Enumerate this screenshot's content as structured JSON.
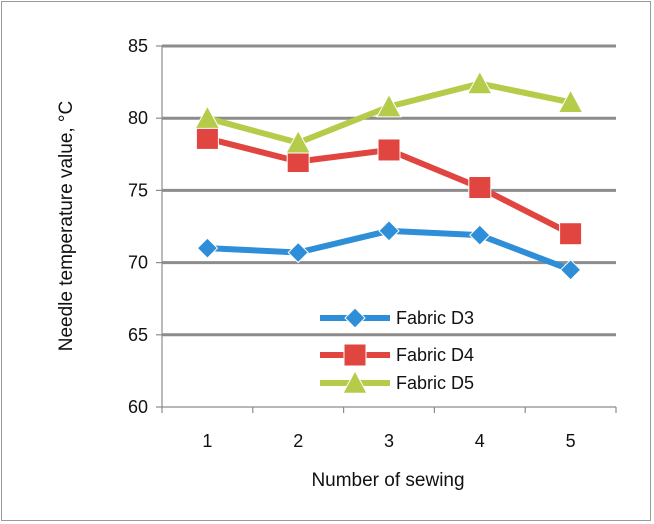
{
  "chart_data": {
    "type": "line",
    "title": "",
    "xlabel": "Number of sewing",
    "ylabel": "Needle temperature value, °C",
    "categories": [
      "1",
      "2",
      "3",
      "4",
      "5"
    ],
    "ylim": [
      60,
      85
    ],
    "yticks": [
      "60",
      "65",
      "70",
      "75",
      "80",
      "85"
    ],
    "grid": "horizontal",
    "legend_position": "lower-center",
    "series": [
      {
        "name": "Fabric D3",
        "values": [
          71.0,
          70.7,
          72.2,
          71.9,
          69.5
        ],
        "color": "#2E8FD8",
        "marker": "diamond"
      },
      {
        "name": "Fabric D4",
        "values": [
          78.6,
          77.0,
          77.8,
          75.2,
          72.0
        ],
        "color": "#E0463F",
        "marker": "square"
      },
      {
        "name": "Fabric D5",
        "values": [
          80.0,
          78.3,
          80.8,
          82.4,
          81.1
        ],
        "color": "#B5CC4A",
        "marker": "triangle"
      }
    ]
  }
}
